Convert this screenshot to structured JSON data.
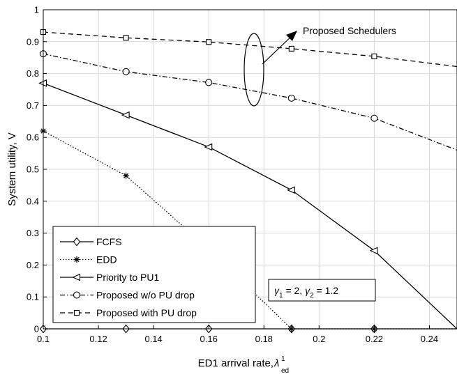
{
  "chart_data": {
    "type": "line",
    "title": "",
    "xlabel": "ED1 arrival rate, ",
    "xlabel_symbol": "λ",
    "xlabel_sup": "1",
    "xlabel_sub": "ed",
    "ylabel": "System utility, V",
    "xlim": [
      0.1,
      0.25
    ],
    "ylim": [
      0,
      1
    ],
    "xticks": [
      "0.1",
      "0.12",
      "0.14",
      "0.16",
      "0.18",
      "0.2",
      "0.22",
      "0.24"
    ],
    "yticks": [
      "0",
      "0.1",
      "0.2",
      "0.3",
      "0.4",
      "0.5",
      "0.6",
      "0.7",
      "0.8",
      "0.9",
      "1"
    ],
    "grid": true,
    "legend_position": "bottom-left",
    "x": [
      0.1,
      0.13,
      0.16,
      0.19,
      0.22,
      0.25
    ],
    "series": [
      {
        "name": "FCFS",
        "marker": "diamond",
        "dash": "solid",
        "values": [
          0,
          0,
          0,
          0,
          0,
          0
        ]
      },
      {
        "name": "EDD",
        "marker": "asterisk",
        "dash": "dotted",
        "values": [
          0.62,
          0.48,
          0.25,
          0,
          0,
          0
        ]
      },
      {
        "name": "Priority to PU1",
        "marker": "triangle-left",
        "dash": "solid",
        "values": [
          0.77,
          0.67,
          0.57,
          0.435,
          0.245,
          0
        ]
      },
      {
        "name": "Proposed w/o PU drop",
        "marker": "circle",
        "dash": "dashdot",
        "values": [
          0.862,
          0.806,
          0.772,
          0.723,
          0.66,
          0.56
        ]
      },
      {
        "name": "Proposed with PU drop",
        "marker": "square",
        "dash": "dashed",
        "values": [
          0.93,
          0.912,
          0.899,
          0.878,
          0.854,
          0.822
        ]
      }
    ],
    "annotations": {
      "schedulers_label": "Proposed Schedulers",
      "gamma_box": {
        "g1_symbol": "γ",
        "g1_sub": "1",
        "g1_value": " = 2,  ",
        "g2_symbol": "γ",
        "g2_sub": "2",
        "g2_value": " = 1.2"
      }
    }
  }
}
